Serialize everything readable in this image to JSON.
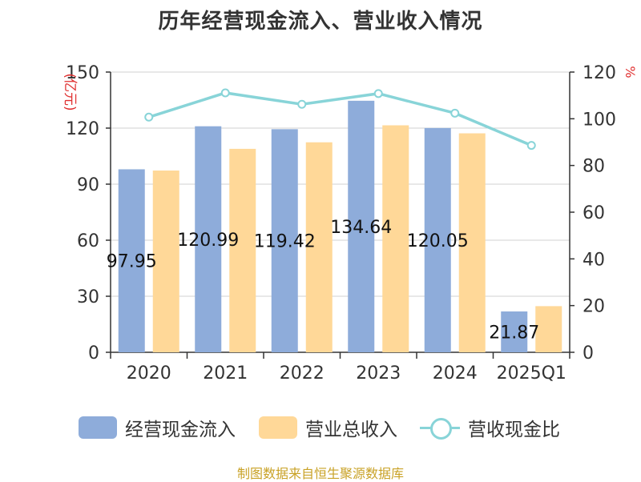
{
  "chart_data": {
    "type": "bar",
    "title": "历年经营现金流入、营业收入情况",
    "categories": [
      "2020",
      "2021",
      "2022",
      "2023",
      "2024",
      "2025Q1"
    ],
    "left_axis": {
      "label": "(亿元)",
      "ylim": [
        0,
        150
      ],
      "ticks": [
        0,
        30,
        60,
        90,
        120,
        150
      ]
    },
    "right_axis": {
      "label": "%",
      "ylim": [
        0,
        120
      ],
      "ticks": [
        0,
        20,
        40,
        60,
        80,
        100,
        120
      ]
    },
    "series": [
      {
        "name": "经营现金流入",
        "type": "bar",
        "axis": "left",
        "color": "#8eacda",
        "values": [
          97.95,
          120.99,
          119.42,
          134.64,
          120.05,
          21.87
        ],
        "labels": [
          "97.95",
          "120.99",
          "119.42",
          "134.64",
          "120.05",
          "21.87"
        ]
      },
      {
        "name": "营业总收入",
        "type": "bar",
        "axis": "left",
        "color": "#ffd898",
        "values": [
          97.3,
          108.9,
          112.4,
          121.5,
          117.2,
          24.7
        ]
      },
      {
        "name": "营收现金比",
        "type": "line",
        "axis": "right",
        "color": "#88d4d8",
        "values": [
          100.7,
          111.1,
          106.2,
          110.8,
          102.4,
          88.6
        ]
      }
    ],
    "grid": true,
    "legend_position": "bottom"
  },
  "source": "制图数据来自恒生聚源数据库"
}
